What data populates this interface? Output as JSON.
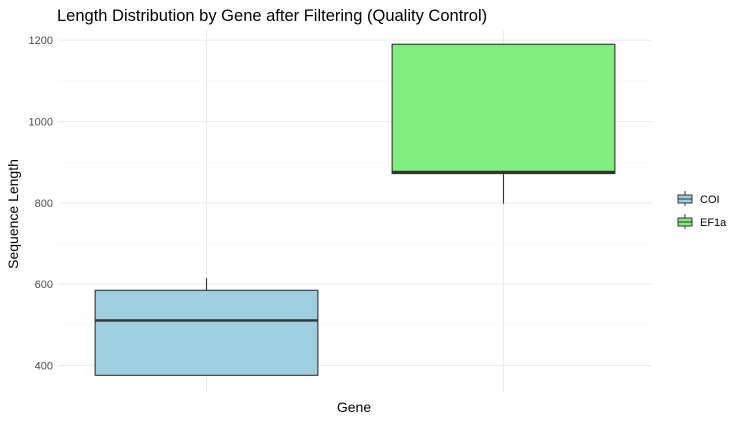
{
  "chart_data": {
    "type": "boxplot",
    "title": "Length Distribution by Gene after Filtering (Quality Control)",
    "xlabel": "Gene",
    "ylabel": "Sequence Length",
    "ylim": [
      335,
      1225
    ],
    "yticks": [
      400,
      600,
      800,
      1000,
      1200
    ],
    "grid": true,
    "legend_position": "right",
    "categories": [
      "COI",
      "EF1a"
    ],
    "series": [
      {
        "name": "COI",
        "whisker_low": 376,
        "q1": 376,
        "median": 511,
        "q3": 585,
        "whisker_high": 615,
        "color": "#9ecfe0"
      },
      {
        "name": "EF1a",
        "whisker_low": 798,
        "q1": 872,
        "median": 876,
        "q3": 1190,
        "whisker_high": 1190,
        "color": "#80ed7e"
      }
    ]
  }
}
